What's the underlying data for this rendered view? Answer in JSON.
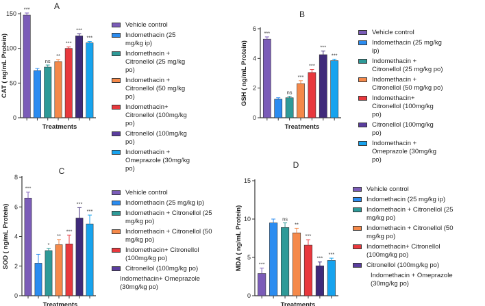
{
  "figure": {
    "panels": [
      "A",
      "B",
      "C",
      "D"
    ]
  },
  "chart_data": [
    {
      "panel": "A",
      "type": "bar",
      "title": "A",
      "xlabel": "Treatments",
      "ylabel": "CAT ( ng/mL Protein)",
      "ylim": [
        0,
        150
      ],
      "yticks": [
        0,
        50,
        100,
        150
      ],
      "categories": [
        "Vehicle control",
        "Indomethacin (25 mg/kg ip)",
        "Indomethacin + Citronellol (25 mg/kg po)",
        "Indomethacin + Citronellol (50 mg/kg po)",
        "Indomethacin+ Citronellol (100mg/kg po)",
        "Citronellol (100mg/kg po)",
        "Indomethacin + Omeprazole (30mg/kg po)"
      ],
      "values": [
        148,
        68,
        73,
        81,
        100,
        118,
        108
      ],
      "errors": [
        3,
        3,
        3,
        3,
        2,
        3,
        2
      ],
      "significance": [
        "***",
        "",
        "ns",
        "**",
        "***",
        "***",
        "***"
      ],
      "legend": [
        "Vehicle control",
        "Indomethacin (25 mg/kg ip)",
        "Indomethacin + Citronellol (25 mg/kg po)",
        "Indomethacin + Citronellol (50 mg/kg po)",
        "Indomethacin+ Citronellol (100mg/kg po)",
        "Citronellol (100mg/kg po)",
        "Indomethacin + Omeprazole (30mg/kg po)"
      ]
    },
    {
      "panel": "B",
      "type": "bar",
      "title": "B",
      "xlabel": "Treatments",
      "ylabel": "GSH ( ng/mL Protein)",
      "ylim": [
        0,
        6
      ],
      "yticks": [
        0,
        2,
        4,
        6
      ],
      "categories": [
        "Vehicle control",
        "Indomethacin (25 mg/kg ip)",
        "Indomethacin + Citronellol (25 mg/kg po)",
        "Indomethacin + Citronellol (50 mg/kg po)",
        "Indomethacin+ Citronellol (100mg/kg po)",
        "Citronellol (100mg/kg po)",
        "Indomethacin + Omeprazole (30mg/kg po)"
      ],
      "values": [
        5.3,
        1.25,
        1.35,
        2.3,
        3.05,
        4.25,
        3.85
      ],
      "errors": [
        0.15,
        0.1,
        0.1,
        0.2,
        0.2,
        0.25,
        0.1
      ],
      "significance": [
        "***",
        "",
        "ns",
        "***",
        "***",
        "***",
        "***"
      ],
      "legend": [
        "Vehicle control",
        "Indomethacin (25 mg/kg ip)",
        "Indomethacin + Citronellol (25 mg/kg po)",
        "Indomethacin + Citronellol (50 mg/kg po)",
        "Indomethacin+ Citronellol (100mg/kg po)",
        "Citronellol (100mg/kg po)",
        "Indomethacin + Omeprazole (30mg/kg po)"
      ]
    },
    {
      "panel": "C",
      "type": "bar",
      "title": "C",
      "xlabel": "Treatments",
      "ylabel": "SOD ( ng/mL Protein)",
      "ylim": [
        0,
        8
      ],
      "yticks": [
        0,
        2,
        4,
        6,
        8
      ],
      "categories": [
        "Vehicle control",
        "Indomethacin (25 mg/kg ip)",
        "Indomethacin + Citronellol (25 mg/kg po)",
        "Indomethacin + Citronellol (50 mg/kg po)",
        "Indomethacin+ Citronellol (100mg/kg po)",
        "Citronellol (100mg/kg po)",
        "Indomethacin+ Omeprazole (30mg/kg po)"
      ],
      "values": [
        6.6,
        2.2,
        3.05,
        3.45,
        3.5,
        5.25,
        4.85
      ],
      "errors": [
        0.4,
        0.6,
        0.15,
        0.35,
        0.6,
        0.7,
        0.6
      ],
      "significance": [
        "***",
        "",
        "*",
        "**",
        "***",
        "***",
        "***"
      ],
      "legend": [
        "Vehicle control",
        "Indomethacin (25 mg/kg ip)",
        "Indomethacin + Citronellol (25 mg/kg po)",
        "Indomethacin + Citronellol (50 mg/kg po)",
        "Indomethacin+ Citronellol (100mg/kg po)",
        "Citronellol (100mg/kg po)",
        "Indomethacin+ Omeprazole (30mg/kg po)"
      ]
    },
    {
      "panel": "D",
      "type": "bar",
      "title": "D",
      "xlabel": "Treatments",
      "ylabel": "MDA ( ng/mL Protein)",
      "ylim": [
        0,
        15
      ],
      "yticks": [
        0,
        5,
        10,
        15
      ],
      "categories": [
        "Vehicle control",
        "Indomethacin (25 mg/kg ip)",
        "Indomethacin + Citronellol (25 mg/kg po)",
        "Indomethacin + Citronellol (50 mg/kg po)",
        "Indomethacin+ Citronellol (100mg/kg po)",
        "Citronellol (100mg/kg po)",
        "Indomethacin + Omeprazole (30mg/kg po)"
      ],
      "values": [
        2.9,
        9.5,
        8.9,
        8.2,
        6.6,
        3.9,
        4.6
      ],
      "errors": [
        0.7,
        0.5,
        0.6,
        0.6,
        0.7,
        0.5,
        0.3
      ],
      "significance": [
        "***",
        "",
        "ns",
        "**",
        "***",
        "***",
        "***"
      ],
      "legend": [
        "Vehicle control",
        "Indomethacin (25 mg/kg ip)",
        "Indomethacin + Citronellol (25 mg/kg po)",
        "Indomethacin + Citronellol (50 mg/kg po)",
        "Indomethacin+ Citronellol (100mg/kg po)",
        "Citronellol (100mg/kg po)",
        "Indomethacin + Omeprazole (30mg/kg po)"
      ]
    }
  ],
  "colors": {
    "bars": [
      "#7b5cb8",
      "#2b8cf0",
      "#2e9a98",
      "#f5894a",
      "#e8383d",
      "#3f2a7a",
      "#17a3ee"
    ],
    "legend_fill": [
      "#7b5cb8",
      "#2b8cf0",
      "#2e9a98",
      "#f5894a",
      "#e8383d",
      "#5a3d9e",
      "#17a3ee"
    ],
    "axis": "#333333"
  }
}
